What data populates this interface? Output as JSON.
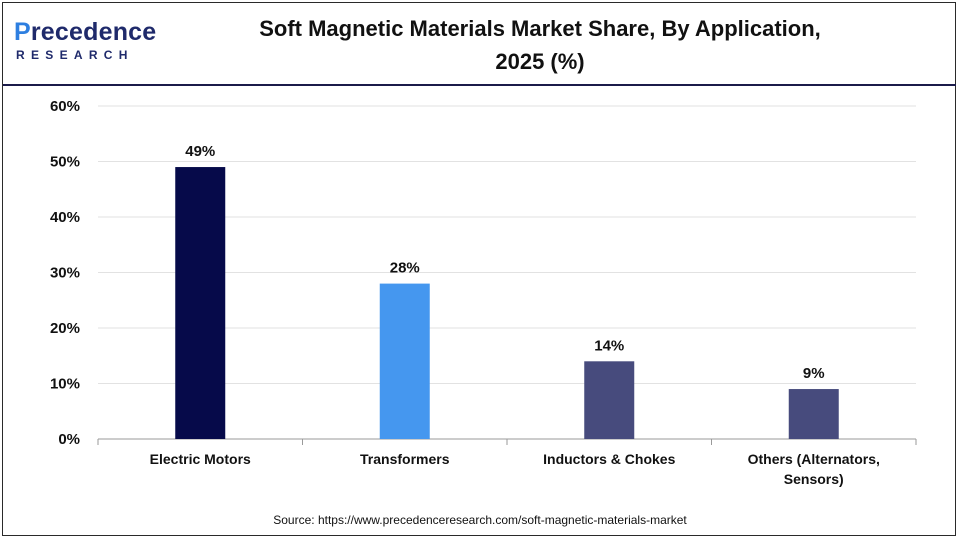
{
  "header": {
    "brand_prefix": "P",
    "brand_rest": "recedence",
    "brand_sub": "RESEARCH",
    "title_line1": "Soft Magnetic Materials Market Share, By Application,",
    "title_line2": "2025 (%)"
  },
  "chart_data": {
    "type": "bar",
    "title": "Soft Magnetic Materials Market Share, By Application, 2025 (%)",
    "categories": [
      [
        "Electric Motors"
      ],
      [
        "Transformers"
      ],
      [
        "Inductors & Chokes"
      ],
      [
        "Others (Alternators,",
        "Sensors)"
      ]
    ],
    "values": [
      49,
      28,
      14,
      9
    ],
    "value_labels": [
      "49%",
      "28%",
      "14%",
      "9%"
    ],
    "colors": [
      "#060a4a",
      "#4597ef",
      "#474b7d",
      "#474b7d"
    ],
    "ylim": [
      0,
      60
    ],
    "yticks": [
      0,
      10,
      20,
      30,
      40,
      50,
      60
    ],
    "ytick_labels": [
      "0%",
      "10%",
      "20%",
      "30%",
      "40%",
      "50%",
      "60%"
    ],
    "grid": true,
    "xlabel": "",
    "ylabel": ""
  },
  "footer": {
    "source": "Source: https://www.precedenceresearch.com/soft-magnetic-materials-market"
  }
}
